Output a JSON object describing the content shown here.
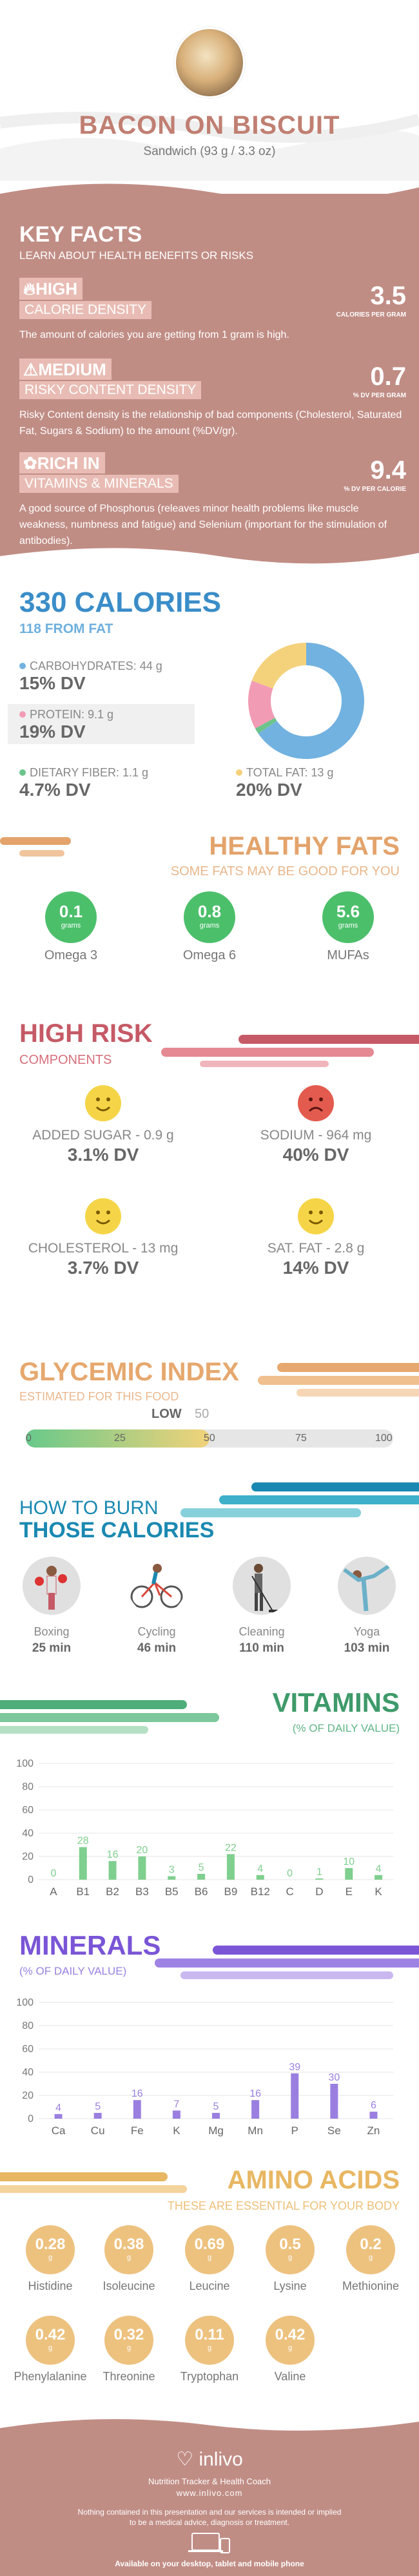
{
  "header": {
    "title": "BACON ON BISCUIT",
    "subtitle": "Sandwich (93 g / 3.3 oz)"
  },
  "key_facts": {
    "title": "KEY FACTS",
    "subtitle": "LEARN ABOUT HEALTH BENEFITS OR RISKS",
    "items": [
      {
        "level": "HIGH",
        "name": "CALORIE DENSITY",
        "value": "3.5",
        "unit": "CALORIES PER GRAM",
        "icon": "flame-icon",
        "desc": "The amount of calories you are getting from 1 gram is high."
      },
      {
        "level": "MEDIUM",
        "name": "RISKY CONTENT DENSITY",
        "value": "0.7",
        "unit": "% DV PER GRAM",
        "icon": "warning-icon",
        "desc": "Risky Content density is the relationship of bad components (Cholesterol, Saturated Fat, Sugars & Sodium) to the amount (%DV/gr)."
      },
      {
        "level": "RICH  IN",
        "name": "VITAMINS & MINERALS",
        "value": "9.4",
        "unit": "% DV PER CALORIE",
        "icon": "leaf-icon",
        "desc": "A good source of Phosphorus (releaves minor health problems like muscle weakness, numbness and fatigue) and Selenium (important for the stimulation of antibodies)."
      }
    ]
  },
  "calories": {
    "total": "330 CALORIES",
    "from_fat": "118 FROM FAT",
    "macros": [
      {
        "label": "CARBOHYDRATES: 44 g",
        "dv": "15% DV",
        "color": "#72b2e0"
      },
      {
        "label": "PROTEIN: 9.1 g",
        "dv": "19% DV",
        "color": "#f29bb5"
      },
      {
        "label": "DIETARY FIBER: 1.1 g",
        "dv": "4.7% DV",
        "color": "#6cc48a"
      },
      {
        "label": "TOTAL FAT: 13 g",
        "dv": "20% DV",
        "color": "#f4d27c"
      }
    ],
    "donut": [
      {
        "name": "carbs",
        "value": 44,
        "color": "#72b2e0"
      },
      {
        "name": "fiber",
        "value": 1.1,
        "color": "#6cc48a"
      },
      {
        "name": "protein",
        "value": 9.1,
        "color": "#f29bb5"
      },
      {
        "name": "fat",
        "value": 13,
        "color": "#f4d27c"
      }
    ]
  },
  "healthy_fats": {
    "title": "HEALTHY FATS",
    "subtitle": "SOME FATS MAY BE GOOD FOR YOU",
    "unit": "grams",
    "items": [
      {
        "value": "0.1",
        "name": "Omega 3"
      },
      {
        "value": "0.8",
        "name": "Omega 6"
      },
      {
        "value": "5.6",
        "name": "MUFAs"
      }
    ]
  },
  "high_risk": {
    "title": "HIGH RISK",
    "subtitle": "COMPONENTS",
    "items": [
      {
        "label": "ADDED SUGAR - 0.9 g",
        "dv": "3.1% DV",
        "mood": "happy"
      },
      {
        "label": "SODIUM - 964 mg",
        "dv": "40% DV",
        "mood": "sad"
      },
      {
        "label": "CHOLESTEROL - 13 mg",
        "dv": "3.7% DV",
        "mood": "happy"
      },
      {
        "label": "SAT. FAT - 2.8 g",
        "dv": "14% DV",
        "mood": "happy"
      }
    ]
  },
  "glycemic": {
    "title": "GLYCEMIC INDEX",
    "subtitle": "ESTIMATED FOR THIS FOOD",
    "level": "LOW",
    "value": "50",
    "fill": 0.5,
    "ticks": [
      "0",
      "25",
      "50",
      "75",
      "100"
    ]
  },
  "burn": {
    "title_line1": "HOW TO BURN",
    "title_line2": "THOSE CALORIES",
    "activities": [
      {
        "name": "Boxing",
        "time": "25 min",
        "icon": "boxing-icon"
      },
      {
        "name": "Cycling",
        "time": "46 min",
        "icon": "cycling-icon"
      },
      {
        "name": "Cleaning",
        "time": "110 min",
        "icon": "cleaning-icon"
      },
      {
        "name": "Yoga",
        "time": "103 min",
        "icon": "yoga-icon"
      }
    ]
  },
  "vitamins": {
    "title": "VITAMINS",
    "subtitle": "(% OF DAILY VALUE)"
  },
  "minerals": {
    "title": "MINERALS",
    "subtitle": "(% OF DAILY VALUE)"
  },
  "chart_data": [
    {
      "type": "bar",
      "categories": [
        "A",
        "B1",
        "B2",
        "B3",
        "B5",
        "B6",
        "B9",
        "B12",
        "C",
        "D",
        "E",
        "K"
      ],
      "values": [
        0,
        28,
        16,
        20,
        3,
        5,
        22,
        4,
        0,
        1,
        10,
        4
      ],
      "yticks": [
        "0",
        "20",
        "40",
        "60",
        "80",
        "100"
      ],
      "ylim": [
        0,
        100
      ],
      "color": "#7fcf8e"
    },
    {
      "type": "bar",
      "categories": [
        "Ca",
        "Cu",
        "Fe",
        "K",
        "Mg",
        "Mn",
        "P",
        "Se",
        "Zn"
      ],
      "values": [
        4,
        5,
        16,
        7,
        5,
        16,
        39,
        30,
        6
      ],
      "yticks": [
        "0",
        "20",
        "40",
        "60",
        "80",
        "100"
      ],
      "ylim": [
        0,
        100
      ],
      "color": "#9b7fe0"
    }
  ],
  "amino": {
    "title": "AMINO ACIDS",
    "subtitle": "THESE ARE ESSENTIAL FOR YOUR BODY",
    "unit": "g",
    "items": [
      {
        "value": "0.28",
        "name": "Histidine"
      },
      {
        "value": "0.38",
        "name": "Isoleucine"
      },
      {
        "value": "0.69",
        "name": "Leucine"
      },
      {
        "value": "0.5",
        "name": "Lysine"
      },
      {
        "value": "0.2",
        "name": "Methionine"
      },
      {
        "value": "0.42",
        "name": "Phenylalanine"
      },
      {
        "value": "0.32",
        "name": "Threonine"
      },
      {
        "value": "0.11",
        "name": "Tryptophan"
      },
      {
        "value": "0.42",
        "name": "Valine"
      }
    ]
  },
  "footer": {
    "brand": "inlivo",
    "tagline": "Nutrition Tracker & Health Coach",
    "url": "www.inlivo.com",
    "disclaimer1": "Nothing contained in this presentation and our services is intended or implied",
    "disclaimer2": "to be a medical advice, diagnosis or treatment.",
    "available": "Available on your desktop, tablet and mobile phone"
  }
}
